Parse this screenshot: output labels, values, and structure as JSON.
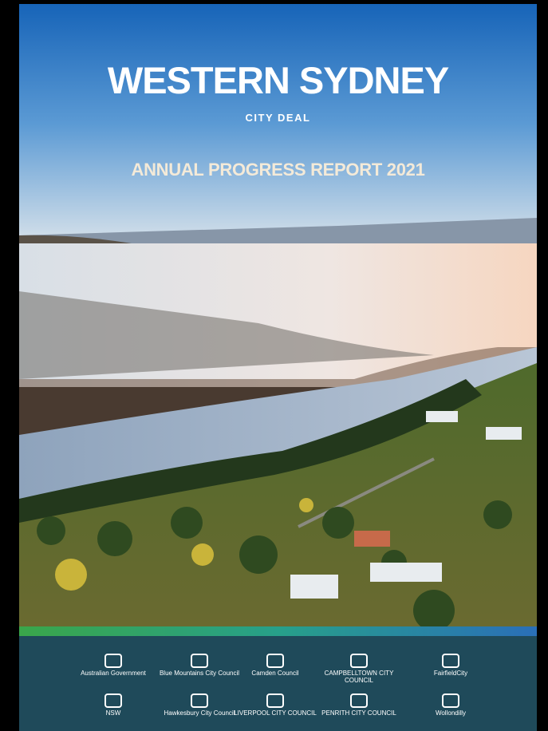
{
  "header": {
    "title": "WESTERN SYDNEY",
    "subtitle": "CITY DEAL",
    "report_title": "ANNUAL PROGRESS REPORT 2021"
  },
  "logos": {
    "rows": [
      [
        "Australian Government",
        "Blue Mountains City Council",
        "Camden Council",
        "CAMPBELLTOWN CITY COUNCIL",
        "FairfieldCity"
      ],
      [
        "NSW",
        "Hawkesbury City Council",
        "LIVERPOOL CITY COUNCIL",
        "PENRITH CITY COUNCIL",
        "Wollondilly"
      ]
    ]
  }
}
